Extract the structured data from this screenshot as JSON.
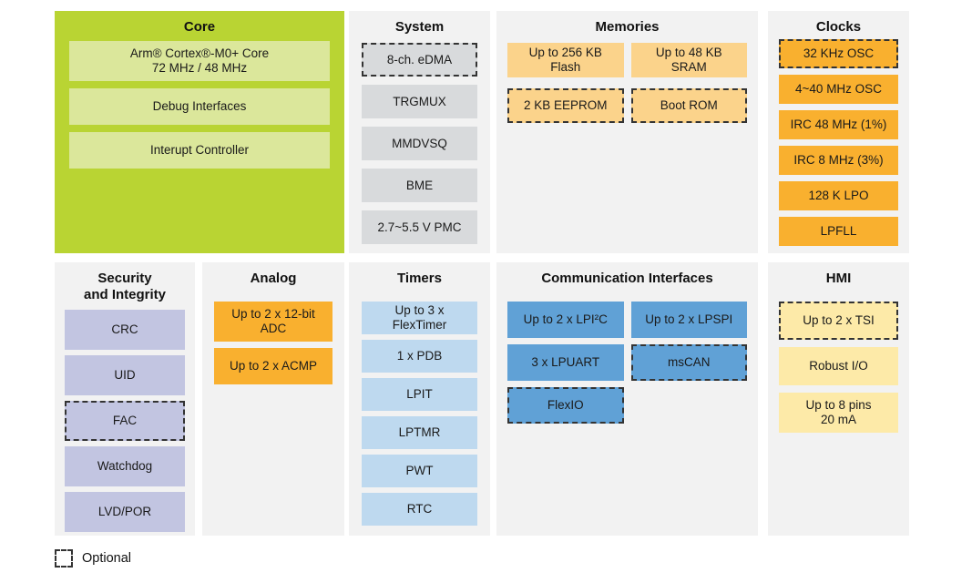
{
  "diagram": {
    "optional_legend": "Optional",
    "core": {
      "title": "Core",
      "items": [
        "Arm® Cortex®-M0+ Core\n72 MHz / 48 MHz",
        "Debug Interfaces",
        "Interupt Controller"
      ]
    },
    "system": {
      "title": "System",
      "items": [
        "8-ch. eDMA",
        "TRGMUX",
        "MMDVSQ",
        "BME",
        "2.7~5.5 V PMC"
      ]
    },
    "memories": {
      "title": "Memories",
      "items": [
        "Up to 256 KB\nFlash",
        "Up to 48 KB\nSRAM",
        "2 KB EEPROM",
        "Boot ROM"
      ]
    },
    "clocks": {
      "title": "Clocks",
      "items": [
        "32 KHz OSC",
        "4~40 MHz OSC",
        "IRC 48 MHz (1%)",
        "IRC 8 MHz (3%)",
        "128 K LPO",
        "LPFLL"
      ]
    },
    "security": {
      "title": "Security\nand Integrity",
      "items": [
        "CRC",
        "UID",
        "FAC",
        "Watchdog",
        "LVD/POR"
      ]
    },
    "analog": {
      "title": "Analog",
      "items": [
        "Up to 2 x 12-bit\nADC",
        "Up to 2 x ACMP"
      ]
    },
    "timers": {
      "title": "Timers",
      "items": [
        "Up to 3 x\nFlexTimer",
        "1 x PDB",
        "LPIT",
        "LPTMR",
        "PWT",
        "RTC"
      ]
    },
    "comm": {
      "title": "Communication Interfaces",
      "items": [
        "Up to 2 x LPI²C",
        "Up to 2 x LPSPI",
        "3 x LPUART",
        "msCAN",
        "FlexIO"
      ]
    },
    "hmi": {
      "title": "HMI",
      "items": [
        "Up to 2 x TSI",
        "Robust I/O",
        "Up to 8 pins\n20 mA"
      ]
    },
    "colors": {
      "core_bg": "#b9d433",
      "core_block": "#dbe79b",
      "panel_bg": "#f2f2f2",
      "system_block": "#d8dadc",
      "memories_block": "#fbd38b",
      "orange_block": "#f9b02f",
      "security_block": "#c2c5e1",
      "timers_block": "#bed9ef",
      "comm_block": "#60a1d6",
      "hmi_block": "#fdeaa8"
    }
  }
}
